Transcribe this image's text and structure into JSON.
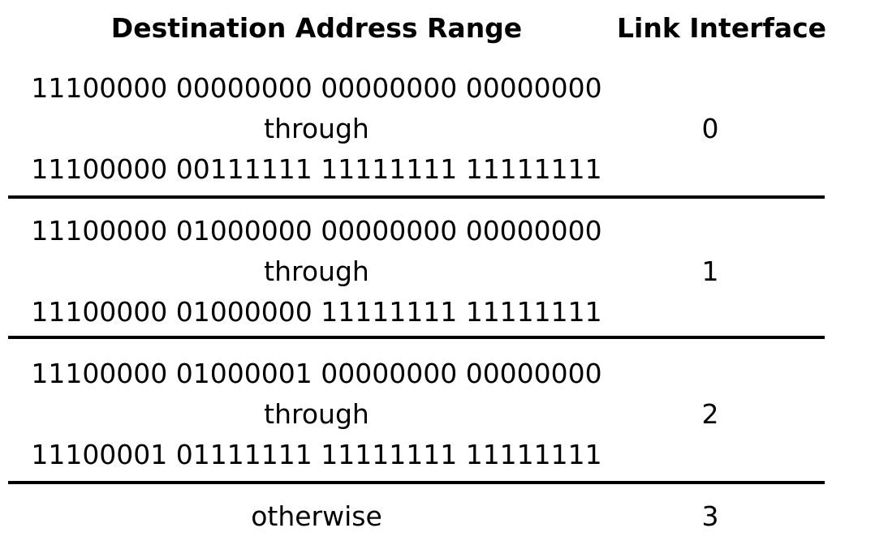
{
  "table": {
    "headers": {
      "range": "Destination Address Range",
      "link": "Link Interface"
    },
    "rows": [
      {
        "start": "11100000 00000000 00000000 00000000",
        "through": "through",
        "end": "11100000 00111111 11111111 11111111",
        "link": "0"
      },
      {
        "start": "11100000 01000000 00000000 00000000",
        "through": "through",
        "end": "11100000 01000000 11111111 11111111",
        "link": "1"
      },
      {
        "start": "11100000 01000001 00000000 00000000",
        "through": "through",
        "end": "11100001 01111111 11111111 11111111",
        "link": "2"
      }
    ],
    "otherwise": {
      "label": "otherwise",
      "link": "3"
    }
  }
}
